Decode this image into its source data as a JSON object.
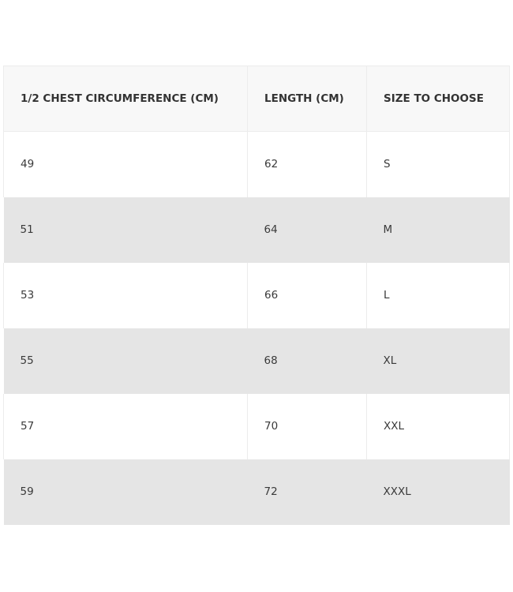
{
  "table": {
    "headers": [
      "1/2 CHEST CIRCUMFERENCE (CM)",
      "LENGTH (CM)",
      "SIZE TO CHOOSE"
    ],
    "rows": [
      [
        "49",
        "62",
        "S"
      ],
      [
        "51",
        "64",
        "M"
      ],
      [
        "53",
        "66",
        "L"
      ],
      [
        "55",
        "68",
        "XL"
      ],
      [
        "57",
        "70",
        "XXL"
      ],
      [
        "59",
        "72",
        "XXXL"
      ]
    ]
  }
}
